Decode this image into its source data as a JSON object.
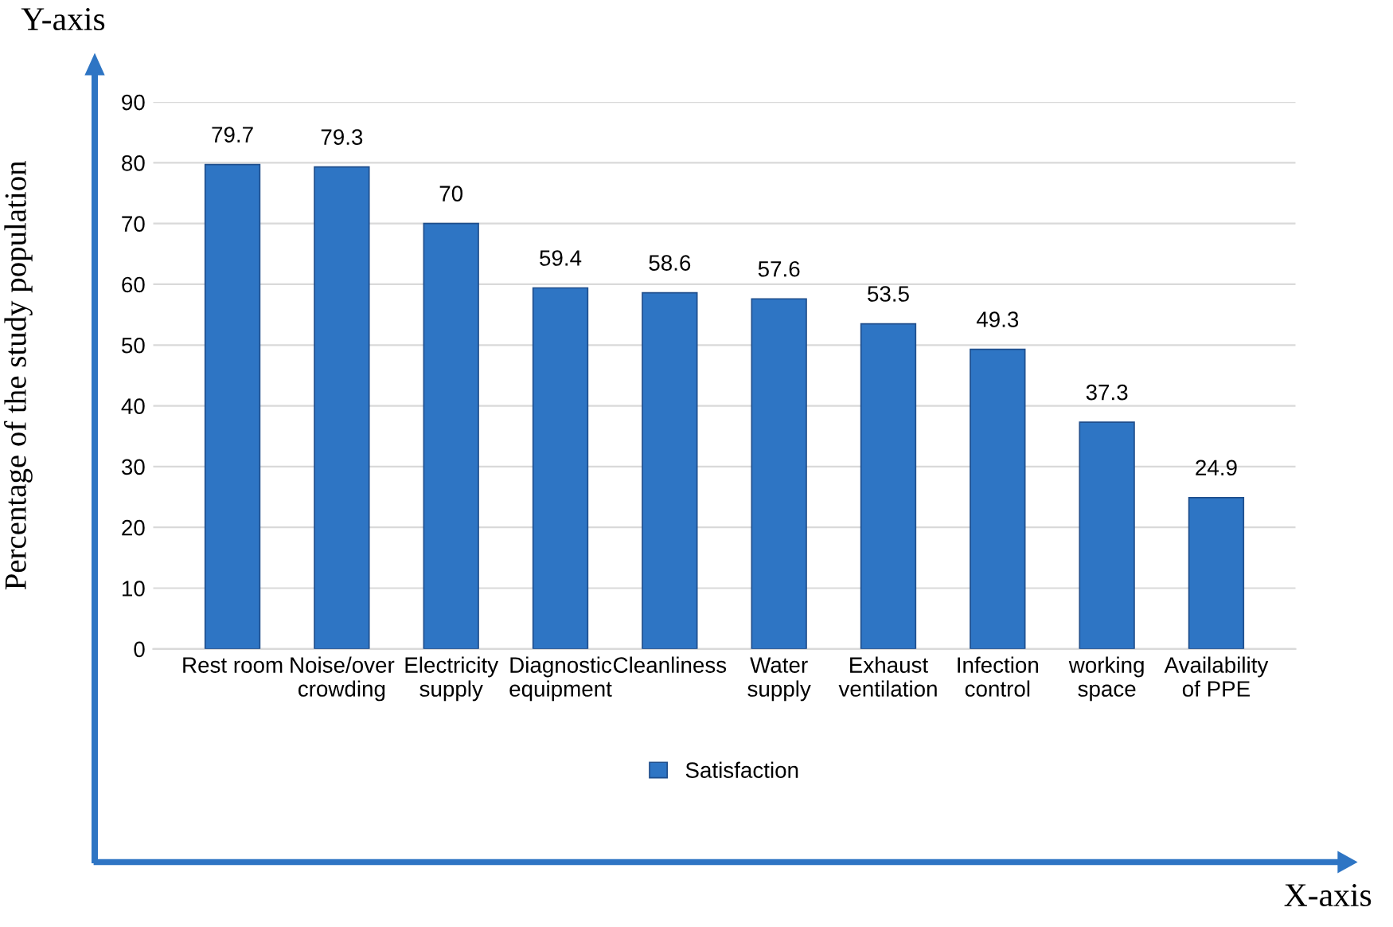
{
  "chart_data": {
    "type": "bar",
    "categories": [
      "Rest room",
      "Noise/over\ncrowding",
      "Electricity\nsupply",
      "Diagnostic\nequipment",
      "Cleanliness",
      "Water\nsupply",
      "Exhaust\nventilation",
      "Infection\ncontrol",
      "working\nspace",
      "Availability\nof PPE"
    ],
    "series": [
      {
        "name": "Satisfaction",
        "color": "#2e75c4",
        "values": [
          79.7,
          79.3,
          70,
          59.4,
          58.6,
          57.6,
          53.5,
          49.3,
          37.3,
          24.9
        ]
      }
    ],
    "ylabel": "Percentage of the study population",
    "annotations": [
      "Y-axis",
      "X-axis"
    ],
    "ylim": [
      0,
      90
    ],
    "yticks": [
      0,
      10,
      20,
      30,
      40,
      50,
      60,
      70,
      80,
      90
    ],
    "grid": "y",
    "legend": "bottom",
    "data_labels": true
  }
}
